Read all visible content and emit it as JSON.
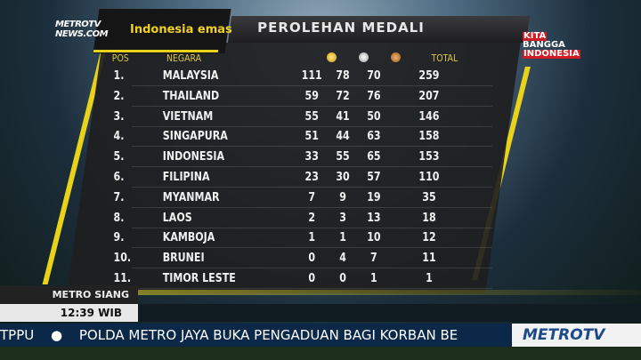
{
  "branding": {
    "metrotv_news": "METROTV NEWS.COM",
    "event_logo": "Indonesia emas",
    "kita_bangga": [
      "KITA",
      "BANGGA",
      "INDONESIA"
    ],
    "channel_logo": "METROTV"
  },
  "title": "PEROLEHAN MEDALI",
  "table": {
    "headers": {
      "pos": "POS",
      "negara": "NEGARA",
      "gold": "gold-medal-icon",
      "silver": "silver-medal-icon",
      "bronze": "bronze-medal-icon",
      "total": "TOTAL"
    },
    "rows": [
      {
        "pos": "1.",
        "negara": "MALAYSIA",
        "gold": "111",
        "silver": "78",
        "bronze": "70",
        "total": "259"
      },
      {
        "pos": "2.",
        "negara": "THAILAND",
        "gold": "59",
        "silver": "72",
        "bronze": "76",
        "total": "207"
      },
      {
        "pos": "3.",
        "negara": "VIETNAM",
        "gold": "55",
        "silver": "41",
        "bronze": "50",
        "total": "146"
      },
      {
        "pos": "4.",
        "negara": "SINGAPURA",
        "gold": "51",
        "silver": "44",
        "bronze": "63",
        "total": "158"
      },
      {
        "pos": "5.",
        "negara": "INDONESIA",
        "gold": "33",
        "silver": "55",
        "bronze": "65",
        "total": "153"
      },
      {
        "pos": "6.",
        "negara": "FILIPINA",
        "gold": "23",
        "silver": "30",
        "bronze": "57",
        "total": "110"
      },
      {
        "pos": "7.",
        "negara": "MYANMAR",
        "gold": "7",
        "silver": "9",
        "bronze": "19",
        "total": "35"
      },
      {
        "pos": "8.",
        "negara": "LAOS",
        "gold": "2",
        "silver": "3",
        "bronze": "13",
        "total": "18"
      },
      {
        "pos": "9.",
        "negara": "KAMBOJA",
        "gold": "1",
        "silver": "1",
        "bronze": "10",
        "total": "12"
      },
      {
        "pos": "10.",
        "negara": "BRUNEI",
        "gold": "0",
        "silver": "4",
        "bronze": "7",
        "total": "11"
      },
      {
        "pos": "11.",
        "negara": "TIMOR LESTE",
        "gold": "0",
        "silver": "0",
        "bronze": "1",
        "total": "1"
      }
    ]
  },
  "program": {
    "name": "METRO SIANG",
    "time": "12:39 WIB"
  },
  "ticker": {
    "prev": "TPPU",
    "text": "POLDA METRO JAYA BUKA PENGADUAN BAGI KORBAN BE"
  },
  "colors": {
    "accent": "#e8d21a",
    "ticker_bg": "#0c2848",
    "kita_bg": "#d01c24"
  }
}
